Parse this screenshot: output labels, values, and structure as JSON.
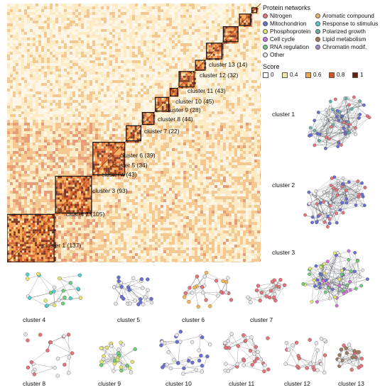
{
  "legend": {
    "networks_title": "Protein networks",
    "networks": [
      {
        "label": "Nitrogen",
        "color": "#e8727a"
      },
      {
        "label": "Mitochondrion",
        "color": "#6a6fd8"
      },
      {
        "label": "Phosphoprotein",
        "color": "#e6e86a"
      },
      {
        "label": "Cell cycle",
        "color": "#d86ee0"
      },
      {
        "label": "RNA regulation",
        "color": "#6ccf78"
      },
      {
        "label": "Other",
        "color": "#e8e8ec"
      },
      {
        "label": "Aromatic compound",
        "color": "#f2b75a"
      },
      {
        "label": "Response to stimulus",
        "color": "#4ed0d0"
      },
      {
        "label": "Polarized growth",
        "color": "#67b0a8"
      },
      {
        "label": "Lipid metabolism",
        "color": "#a07a5c"
      },
      {
        "label": "Chromatin modif.",
        "color": "#a98ad8"
      }
    ],
    "score_title": "Score",
    "scores": [
      {
        "label": "0",
        "color": "#fcfcfc"
      },
      {
        "label": "0.4",
        "color": "#fbe2a8"
      },
      {
        "label": "0.6",
        "color": "#f1a24b"
      },
      {
        "label": "0.8",
        "color": "#d4541e"
      },
      {
        "label": "1",
        "color": "#6a2010"
      }
    ]
  },
  "heatmap_clusters": [
    {
      "label": "cluster 1 (137)",
      "size": 137
    },
    {
      "label": "cluster 2 (105)",
      "size": 105
    },
    {
      "label": "cluster 3 (93)",
      "size": 93
    },
    {
      "label": "cluster 4 (43)",
      "size": 43
    },
    {
      "label": "cluster 5 (34)",
      "size": 34
    },
    {
      "label": "cluster 6 (39)",
      "size": 39
    },
    {
      "label": "cluster 7 (22)",
      "size": 22
    },
    {
      "label": "cluster 8 (44)",
      "size": 44
    },
    {
      "label": "cluster 9 (28)",
      "size": 28
    },
    {
      "label": "cluster 10 (45)",
      "size": 45
    },
    {
      "label": "cluster 11 (43)",
      "size": 43
    },
    {
      "label": "cluster 12 (32)",
      "size": 32
    },
    {
      "label": "cluster 13 (14)",
      "size": 14
    }
  ],
  "networks": [
    {
      "label": "cluster 1",
      "colors": [
        "#6a6fd8",
        "#e8727a",
        "#e8e8ec",
        "#67b0a8"
      ]
    },
    {
      "label": "cluster 2",
      "colors": [
        "#6a6fd8",
        "#e8727a",
        "#e8e8ec"
      ]
    },
    {
      "label": "cluster 3",
      "colors": [
        "#6a6fd8",
        "#e6e86a",
        "#d86ee0",
        "#e8e8ec",
        "#6ccf78"
      ]
    },
    {
      "label": "cluster 4",
      "colors": [
        "#6ccf78",
        "#4ed0d0",
        "#e6e86a",
        "#e8e8ec"
      ]
    },
    {
      "label": "cluster 5",
      "colors": [
        "#6a6fd8",
        "#e8e8ec"
      ]
    },
    {
      "label": "cluster 6",
      "colors": [
        "#e8727a",
        "#e8e8ec",
        "#f2b75a"
      ]
    },
    {
      "label": "cluster 7",
      "colors": [
        "#e8727a",
        "#e8e8ec"
      ]
    },
    {
      "label": "cluster 8",
      "colors": [
        "#e8727a",
        "#e8e8ec"
      ]
    },
    {
      "label": "cluster 9",
      "colors": [
        "#e6e86a",
        "#6ccf78",
        "#e8e8ec"
      ]
    },
    {
      "label": "cluster 10",
      "colors": [
        "#6a6fd8",
        "#e8e8ec"
      ]
    },
    {
      "label": "cluster 11",
      "colors": [
        "#e8727a",
        "#e8e8ec"
      ]
    },
    {
      "label": "cluster 12",
      "colors": [
        "#e8727a",
        "#e8e8ec"
      ]
    },
    {
      "label": "cluster 13",
      "colors": [
        "#a07a5c",
        "#e8727a",
        "#e8e8ec"
      ]
    }
  ]
}
